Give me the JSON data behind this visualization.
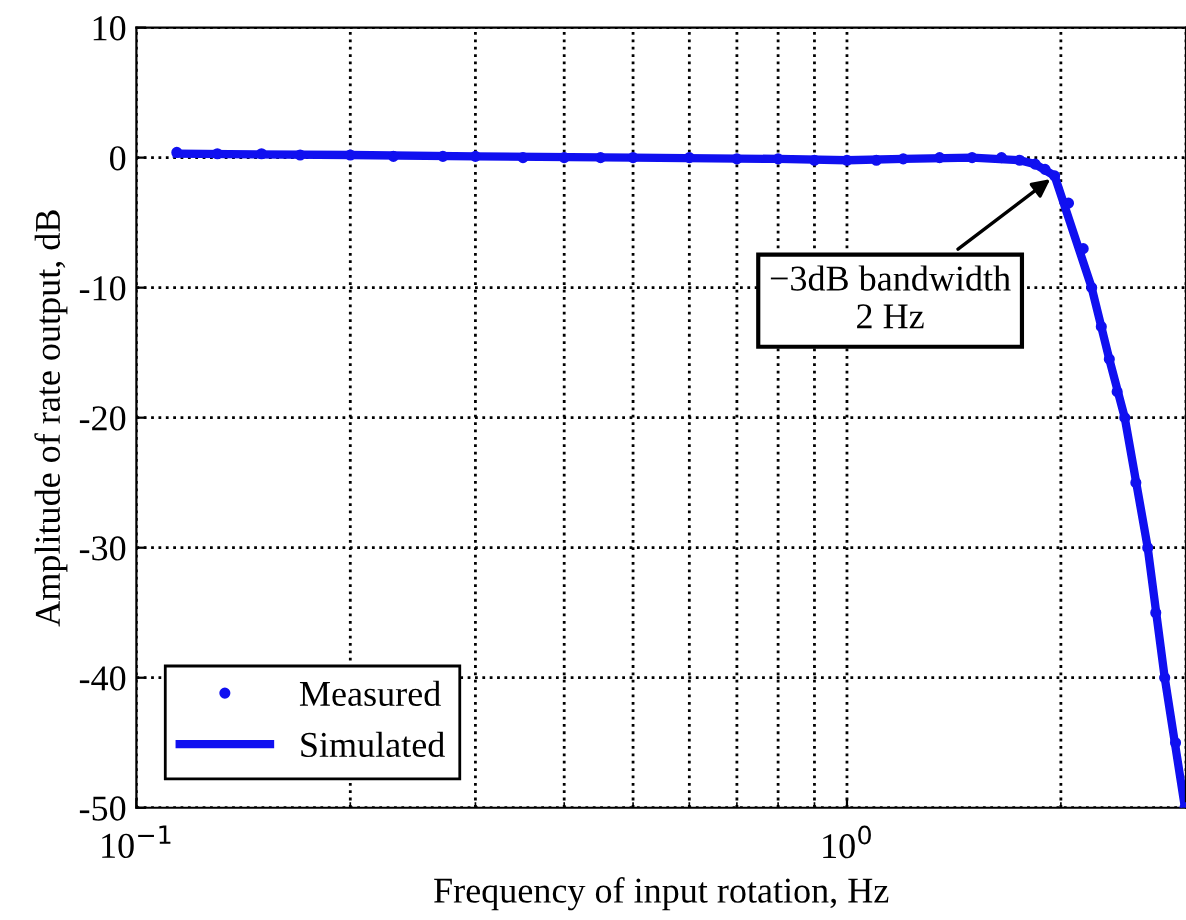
{
  "chart_data": {
    "type": "line",
    "xlabel": "Frequency of input rotation, Hz",
    "ylabel": "Amplitude of rate output, dB",
    "log": "x",
    "xlim": [
      0.1,
      3
    ],
    "ylim": [
      -50,
      10
    ],
    "xticks": [
      {
        "value": 0.1,
        "label": "10$^{−1}$"
      },
      {
        "value": 1,
        "label": "10$^{0}$"
      }
    ],
    "yticks": [
      -50,
      -40,
      -30,
      -20,
      -10,
      0,
      10
    ],
    "grid": true,
    "legend": "bottom left",
    "annotations": [
      {
        "text": "−3dB bandwidth\n2 Hz",
        "x": 1.96,
        "y": -1.4
      }
    ],
    "series": [
      {
        "name": "Measured",
        "type": "scatter",
        "marker": "circle",
        "color": "#1010f0",
        "x": [
          0.114,
          0.13,
          0.15,
          0.17,
          0.2,
          0.23,
          0.27,
          0.3,
          0.35,
          0.4,
          0.45,
          0.5,
          0.6,
          0.7,
          0.8,
          0.9,
          1.0,
          1.1,
          1.2,
          1.35,
          1.5,
          1.65,
          1.75,
          1.84,
          1.9,
          1.96,
          2.05,
          2.15,
          2.21,
          2.28,
          2.34,
          2.4,
          2.46,
          2.55,
          2.65,
          2.72,
          2.8,
          2.9,
          2.99
        ],
        "values": [
          0.4,
          0.3,
          0.3,
          0.2,
          0.2,
          0.1,
          0.1,
          0.1,
          0,
          0,
          0,
          0,
          0,
          -0.1,
          -0.1,
          -0.2,
          -0.2,
          -0.2,
          -0.1,
          0,
          0,
          0,
          -0.2,
          -0.5,
          -0.9,
          -1.4,
          -3.5,
          -7,
          -10,
          -13,
          -15.5,
          -18,
          -20,
          -25,
          -30,
          -35,
          -40,
          -45,
          -50
        ]
      },
      {
        "name": "Simulated",
        "line_style": "solid",
        "color": "#1010f0",
        "x": [
          0.114,
          0.2,
          0.3,
          0.5,
          0.8,
          1.0,
          1.2,
          1.5,
          1.75,
          1.84,
          1.96,
          2.21,
          2.34,
          2.46,
          2.65,
          2.8,
          2.99
        ],
        "values": [
          0.3,
          0.2,
          0.1,
          0,
          -0.1,
          -0.2,
          -0.1,
          0,
          -0.2,
          -0.5,
          -1.4,
          -10,
          -15.5,
          -20,
          -30,
          -40,
          -50
        ]
      }
    ]
  }
}
